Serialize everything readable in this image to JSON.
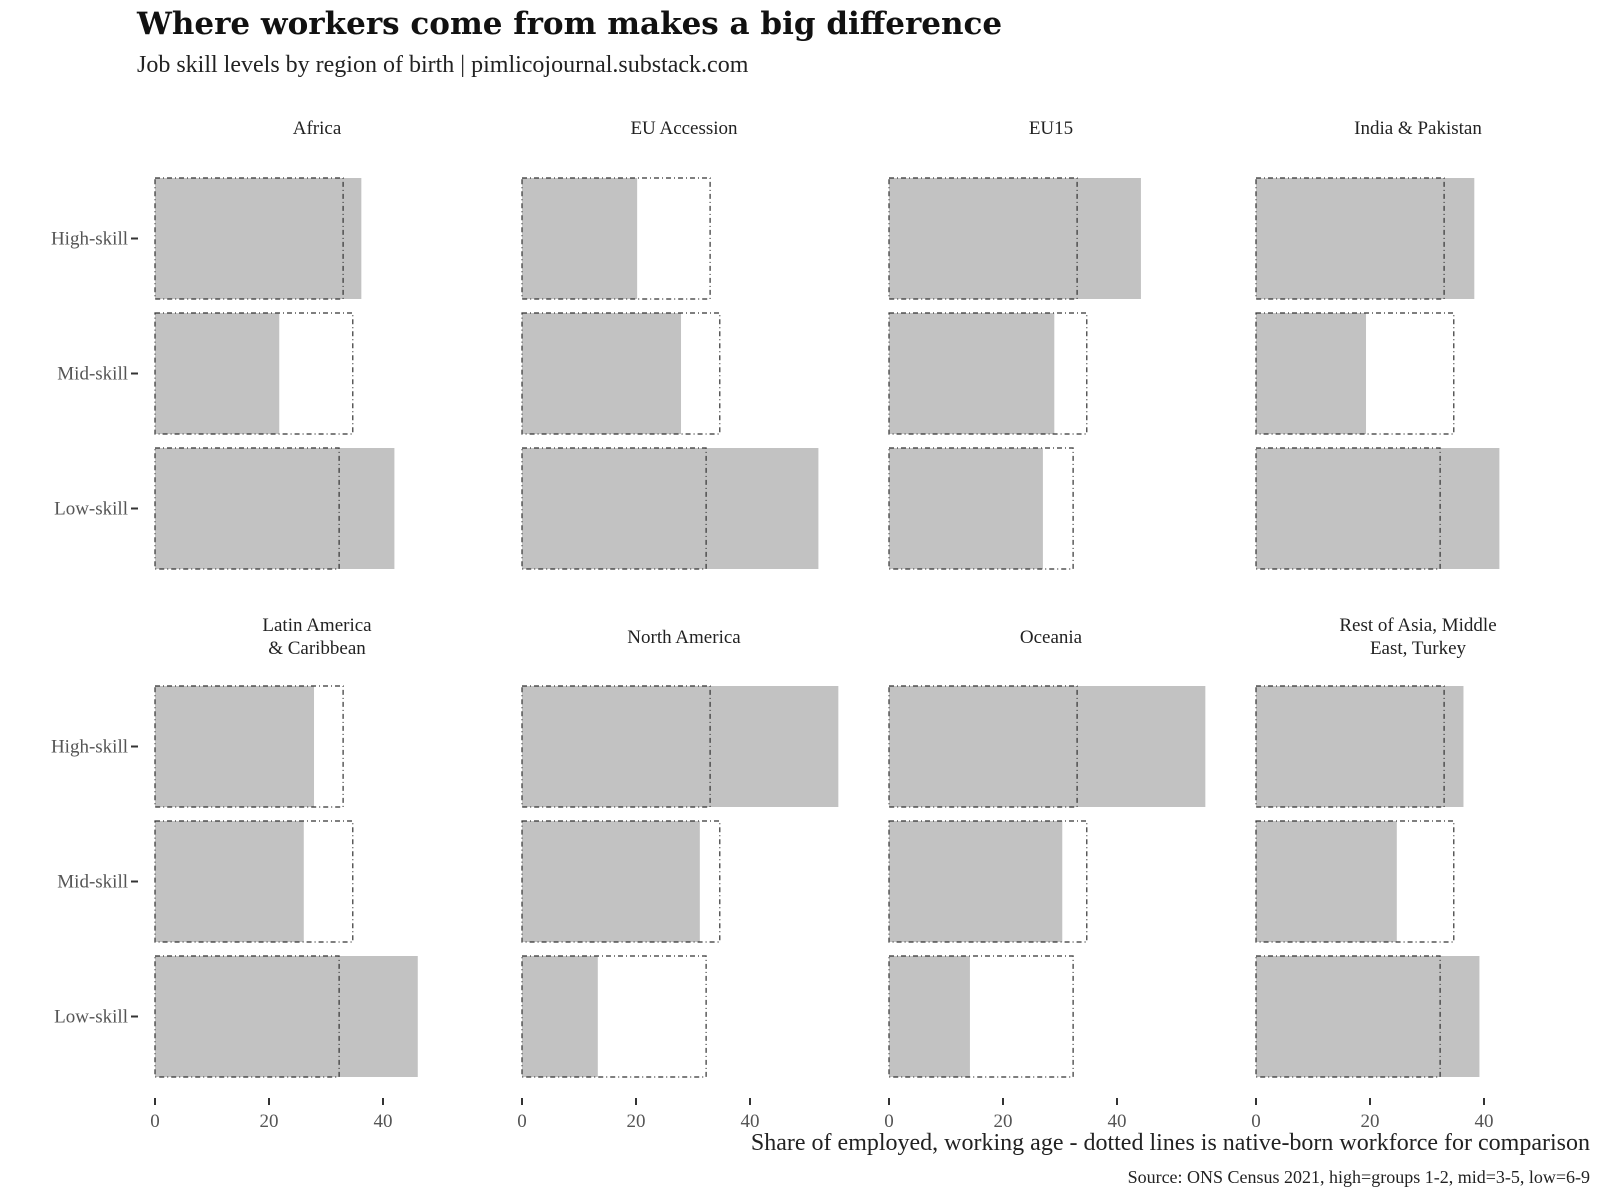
{
  "header": {
    "title": "Where workers come from makes a big difference",
    "subtitle": "Job skill levels by region of birth | pimlicojournal.substack.com"
  },
  "footer": {
    "xlabel": "Share of employed, working age - dotted lines is native-born workforce for comparison",
    "source": "Source: ONS Census 2021, high=groups 1-2, mid=3-5, low=6-9"
  },
  "colors": {
    "bar": "#c2c2c2",
    "reference_outline": "#333333",
    "axis_text": "#555555"
  },
  "chart_data": {
    "type": "bar",
    "orientation": "horizontal",
    "facets": [
      "Africa",
      "EU Accession",
      "EU15",
      "India & Pakistan",
      "Latin America\n& Caribbean",
      "North America",
      "Oceania",
      "Rest of Asia, Middle\nEast, Turkey"
    ],
    "categories": [
      "High-skill",
      "Mid-skill",
      "Low-skill"
    ],
    "series": [
      {
        "facet": "Africa",
        "values": [
          36.2,
          21.8,
          42.0
        ]
      },
      {
        "facet": "EU Accession",
        "values": [
          20.2,
          27.9,
          52.0
        ]
      },
      {
        "facet": "EU15",
        "values": [
          44.2,
          29.0,
          27.0
        ]
      },
      {
        "facet": "India & Pakistan",
        "values": [
          38.3,
          19.3,
          42.7
        ]
      },
      {
        "facet": "Latin America\n& Caribbean",
        "values": [
          27.9,
          26.1,
          46.1
        ]
      },
      {
        "facet": "North America",
        "values": [
          55.5,
          31.2,
          13.3
        ]
      },
      {
        "facet": "Oceania",
        "values": [
          55.5,
          30.4,
          14.2
        ]
      },
      {
        "facet": "Rest of Asia, Middle\nEast, Turkey",
        "values": [
          36.4,
          24.7,
          39.2
        ]
      }
    ],
    "reference": {
      "values": [
        33.0,
        34.7,
        32.3
      ]
    },
    "xlim": [
      0,
      57.5
    ],
    "xticks": [
      0,
      20,
      40
    ],
    "grid": false,
    "legend": "none"
  }
}
